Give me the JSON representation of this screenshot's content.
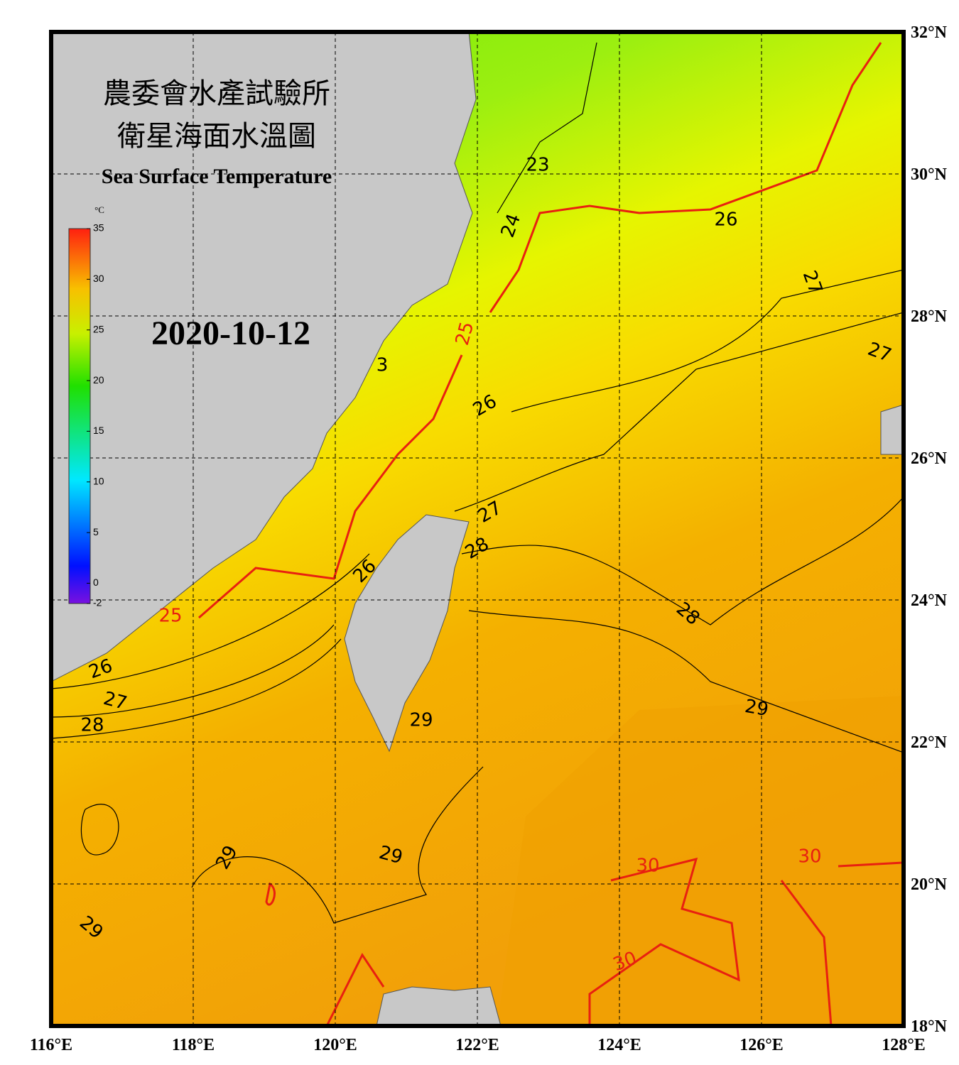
{
  "header": {
    "title_zh_1": "農委會水產試驗所",
    "title_zh_2": "衛星海面水溫圖",
    "title_en": "Sea Surface Temperature",
    "date": "2020-10-12"
  },
  "colorbar": {
    "unit": "°C",
    "range": [
      -2,
      35
    ],
    "ticks": [
      35,
      30,
      25,
      20,
      15,
      10,
      5,
      0,
      -2
    ]
  },
  "map": {
    "lon_range": [
      116,
      128
    ],
    "lat_range": [
      18,
      32
    ],
    "lon_ticks": [
      {
        "value": 116,
        "label": "116°E"
      },
      {
        "value": 118,
        "label": "118°E"
      },
      {
        "value": 120,
        "label": "120°E"
      },
      {
        "value": 122,
        "label": "122°E"
      },
      {
        "value": 124,
        "label": "124°E"
      },
      {
        "value": 126,
        "label": "126°E"
      },
      {
        "value": 128,
        "label": "128°E"
      }
    ],
    "lat_ticks": [
      {
        "value": 32,
        "label": "32°N"
      },
      {
        "value": 30,
        "label": "30°N"
      },
      {
        "value": 28,
        "label": "28°N"
      },
      {
        "value": 26,
        "label": "26°N"
      },
      {
        "value": 24,
        "label": "24°N"
      },
      {
        "value": 22,
        "label": "22°N"
      },
      {
        "value": 20,
        "label": "20°N"
      },
      {
        "value": 18,
        "label": "18°N"
      }
    ],
    "contour_labels": [
      "23",
      "24",
      "26",
      "27",
      "25",
      "27",
      "26",
      "27",
      "28",
      "26",
      "28",
      "25",
      "26",
      "27",
      "28",
      "29",
      "29",
      "29",
      "29",
      "29",
      "30",
      "30",
      "30",
      "3"
    ]
  }
}
